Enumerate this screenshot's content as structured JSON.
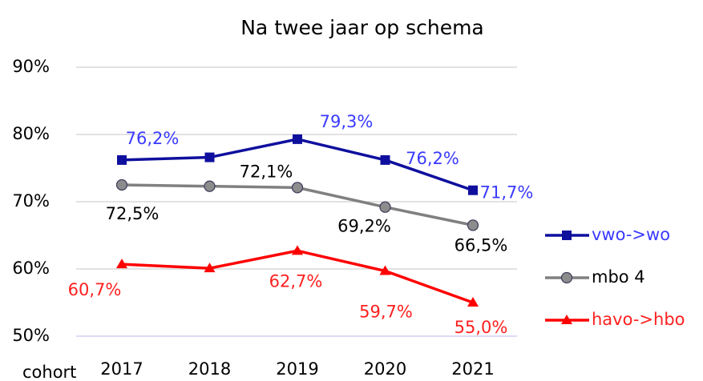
{
  "chart_data": {
    "type": "line",
    "title": "Na twee jaar op schema",
    "x_label": "cohort",
    "categories": [
      "2017",
      "2018",
      "2019",
      "2020",
      "2021"
    ],
    "series": [
      {
        "name": "vwo->wo",
        "color": "#0f0f9e",
        "label_color": "#3a3aff",
        "marker": "square",
        "values": [
          76.2,
          76.6,
          79.3,
          76.2,
          71.7
        ],
        "value_labels": [
          "76,2%",
          null,
          "79,3%",
          "76,2%",
          "71,7%"
        ]
      },
      {
        "name": "mbo 4",
        "color": "#808080",
        "label_color": "#000000",
        "marker": "circle",
        "values": [
          72.5,
          72.3,
          72.1,
          69.2,
          66.5
        ],
        "value_labels": [
          "72,5%",
          null,
          "72,1%",
          "69,2%",
          "66,5%"
        ]
      },
      {
        "name": "havo->hbo",
        "color": "#ff0000",
        "label_color": "#ff2020",
        "marker": "triangle",
        "values": [
          60.7,
          60.1,
          62.7,
          59.7,
          55.0
        ],
        "value_labels": [
          "60,7%",
          null,
          "62,7%",
          "59,7%",
          "55,0%"
        ]
      }
    ],
    "ylim": [
      50,
      90
    ],
    "yticks": [
      {
        "value": 50,
        "label": "50%"
      },
      {
        "value": 60,
        "label": "60%"
      },
      {
        "value": 70,
        "label": "70%"
      },
      {
        "value": 80,
        "label": "80%"
      },
      {
        "value": 90,
        "label": "90%"
      }
    ],
    "grid": true,
    "legend": "right"
  }
}
